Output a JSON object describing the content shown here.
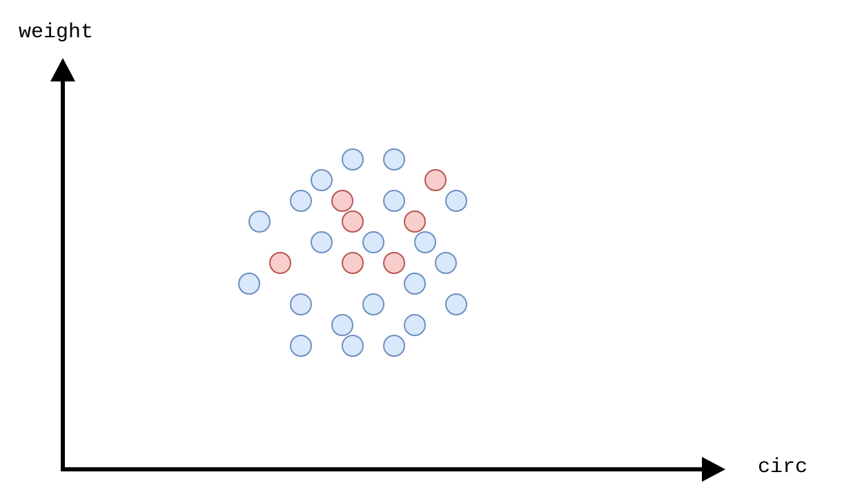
{
  "chart_data": {
    "type": "scatter",
    "title": "",
    "xlabel": "circ",
    "ylabel": "weight",
    "grid": false,
    "legend": "none",
    "xlim": [
      0,
      32
    ],
    "ylim": [
      0,
      22
    ],
    "colors": {
      "axis": "#000000",
      "blue_fill": "#dae8fc",
      "blue_stroke": "#6c8ebf",
      "red_fill": "#f8cecc",
      "red_stroke": "#b85450"
    },
    "series": [
      {
        "color_key": "blue",
        "points": [
          {
            "x": 14,
            "y": 15
          },
          {
            "x": 16,
            "y": 15
          },
          {
            "x": 12.5,
            "y": 14
          },
          {
            "x": 11.5,
            "y": 13
          },
          {
            "x": 16,
            "y": 13
          },
          {
            "x": 19,
            "y": 13
          },
          {
            "x": 9.5,
            "y": 12
          },
          {
            "x": 12.5,
            "y": 11
          },
          {
            "x": 15,
            "y": 11
          },
          {
            "x": 17.5,
            "y": 11
          },
          {
            "x": 18.5,
            "y": 10
          },
          {
            "x": 9,
            "y": 9
          },
          {
            "x": 17,
            "y": 9
          },
          {
            "x": 11.5,
            "y": 8
          },
          {
            "x": 15,
            "y": 8
          },
          {
            "x": 19,
            "y": 8
          },
          {
            "x": 13.5,
            "y": 7
          },
          {
            "x": 17,
            "y": 7
          },
          {
            "x": 11.5,
            "y": 6
          },
          {
            "x": 14,
            "y": 6
          },
          {
            "x": 16,
            "y": 6
          }
        ]
      },
      {
        "color_key": "red",
        "points": [
          {
            "x": 18,
            "y": 14
          },
          {
            "x": 13.5,
            "y": 13
          },
          {
            "x": 14,
            "y": 12
          },
          {
            "x": 17,
            "y": 12
          },
          {
            "x": 10.5,
            "y": 10
          },
          {
            "x": 14,
            "y": 10
          },
          {
            "x": 16,
            "y": 10
          }
        ]
      }
    ]
  }
}
